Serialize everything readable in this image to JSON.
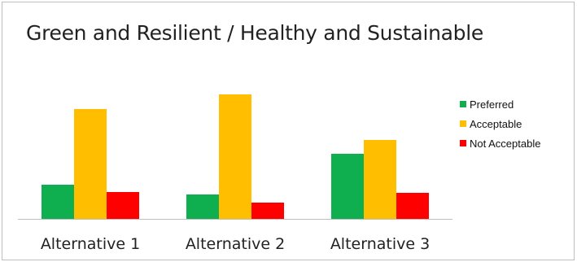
{
  "chart_data": {
    "type": "bar",
    "title": "Green and Resilient / Healthy and Sustainable",
    "xlabel": "",
    "ylabel": "",
    "categories": [
      "Alternative 1",
      "Alternative 2",
      "Alternative 3"
    ],
    "series": [
      {
        "name": "Preferred",
        "color": "#0fae4f",
        "values": [
          42,
          30,
          80
        ]
      },
      {
        "name": "Acceptable",
        "color": "#ffbf00",
        "values": [
          135,
          153,
          97
        ]
      },
      {
        "name": "Not Acceptable",
        "color": "#ff0000",
        "values": [
          33,
          20,
          32
        ]
      }
    ],
    "ylim": [
      0,
      160
    ],
    "grid": false,
    "legend_position": "right"
  }
}
